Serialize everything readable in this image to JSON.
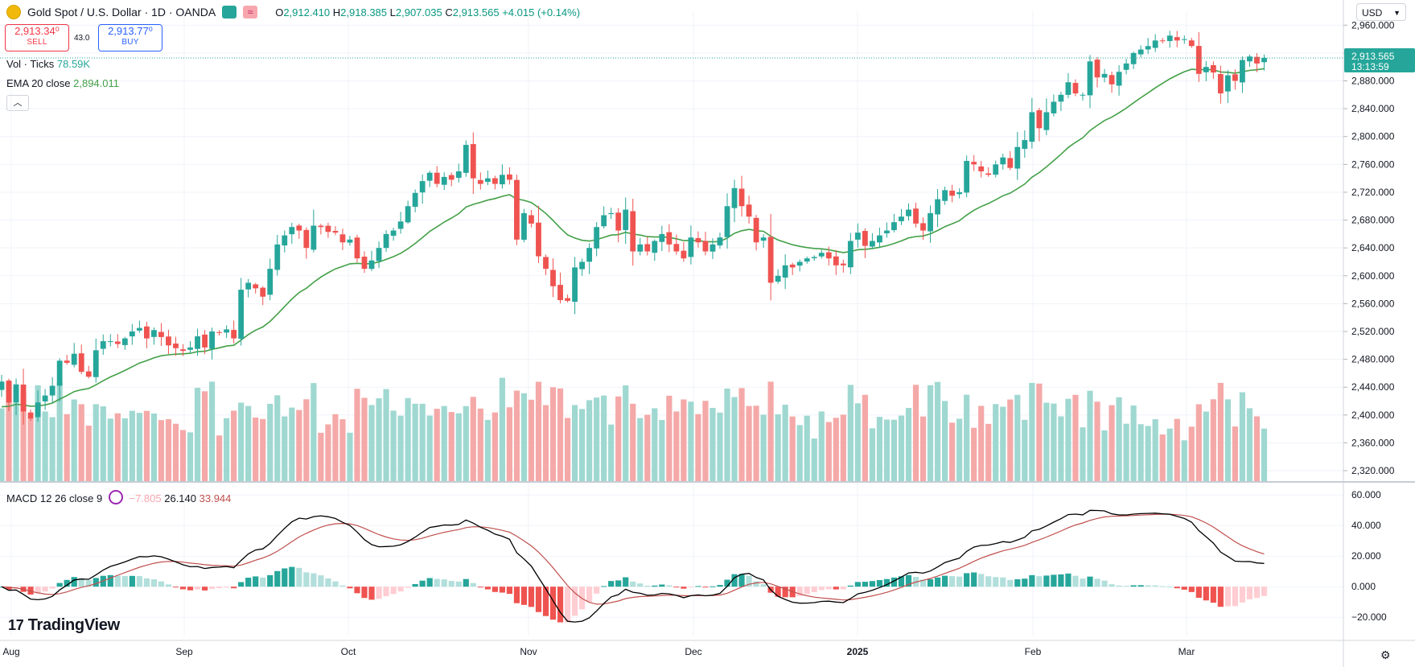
{
  "header": {
    "symbol_title": "Gold Spot / U.S. Dollar · 1D · OANDA",
    "open_label": "O",
    "open": "2,912.410",
    "high_label": "H",
    "high": "2,918.385",
    "low_label": "L",
    "low": "2,907.035",
    "close_label": "C",
    "close": "2,913.565",
    "change": "+4.015 (+0.14%)"
  },
  "trade": {
    "sell_price": "2,913.34⁰",
    "sell_label": "SELL",
    "spread": "43.0",
    "buy_price": "2,913.77⁰",
    "buy_label": "BUY"
  },
  "legend": {
    "volume_label": "Vol · Ticks",
    "volume_value": "78.59K",
    "ema_label": "EMA 20 close",
    "ema_value": "2,894.011",
    "macd_label": "MACD 12 26 close 9",
    "macd_hist": "−7.805",
    "macd_line": "26.140",
    "macd_signal": "33.944"
  },
  "brand": "TradingView",
  "currency": "USD",
  "last_price_label": {
    "price": "2,913.565",
    "countdown": "13:13:59"
  },
  "colors": {
    "up": "#26a69a",
    "down": "#ef5350",
    "ema": "#43a047",
    "macd": "#000000",
    "signal": "#c0504d"
  },
  "chart_data": [
    {
      "type": "candlestick",
      "title": "Gold Spot / U.S. Dollar · 1D · OANDA",
      "x_labels": [
        "Aug",
        "Sep",
        "Oct",
        "Nov",
        "Dec",
        "2025",
        "Feb",
        "Mar"
      ],
      "y_ticks": [
        2320,
        2360,
        2400,
        2440,
        2480,
        2520,
        2560,
        2600,
        2640,
        2680,
        2720,
        2760,
        2800,
        2840,
        2880,
        2920,
        2960
      ],
      "ylim": [
        2305,
        2980
      ],
      "closes": [
        2448,
        2418,
        2444,
        2405,
        2395,
        2418,
        2428,
        2442,
        2478,
        2475,
        2488,
        2462,
        2455,
        2493,
        2506,
        2506,
        2502,
        2510,
        2520,
        2525,
        2510,
        2522,
        2512,
        2500,
        2496,
        2492,
        2497,
        2513,
        2497,
        2520,
        2518,
        2523,
        2510,
        2580,
        2590,
        2582,
        2570,
        2610,
        2645,
        2658,
        2670,
        2665,
        2640,
        2672,
        2670,
        2663,
        2662,
        2648,
        2652,
        2625,
        2610,
        2622,
        2640,
        2660,
        2665,
        2678,
        2700,
        2719,
        2736,
        2748,
        2732,
        2742,
        2738,
        2750,
        2788,
        2740,
        2732,
        2740,
        2732,
        2745,
        2738,
        2652,
        2690,
        2675,
        2628,
        2610,
        2585,
        2565,
        2564,
        2612,
        2620,
        2640,
        2670,
        2687,
        2690,
        2665,
        2695,
        2635,
        2645,
        2635,
        2650,
        2660,
        2645,
        2635,
        2625,
        2655,
        2648,
        2635,
        2645,
        2655,
        2700,
        2726,
        2700,
        2685,
        2648,
        2655,
        2590,
        2600,
        2615,
        2612,
        2620,
        2625,
        2627,
        2633,
        2625,
        2615,
        2615,
        2650,
        2662,
        2643,
        2650,
        2658,
        2665,
        2677,
        2685,
        2695,
        2675,
        2665,
        2690,
        2710,
        2723,
        2715,
        2720,
        2765,
        2760,
        2750,
        2745,
        2760,
        2770,
        2755,
        2785,
        2795,
        2835,
        2812,
        2835,
        2850,
        2860,
        2878,
        2862,
        2860,
        2908,
        2885,
        2890,
        2875,
        2893,
        2905,
        2920,
        2925,
        2930,
        2938,
        2938,
        2945,
        2938,
        2940,
        2930,
        2890,
        2900,
        2892,
        2862,
        2888,
        2880,
        2910,
        2915,
        2905,
        2913
      ],
      "volume_ylim": [
        0,
        1
      ],
      "macd_ticks": [
        -20,
        0,
        20,
        40,
        60
      ],
      "macd_ylim": [
        -32,
        68
      ],
      "macd_line_last": 26.14,
      "signal_last": 33.944,
      "histogram_last": -7.805,
      "ema_last": 2894.011
    }
  ]
}
